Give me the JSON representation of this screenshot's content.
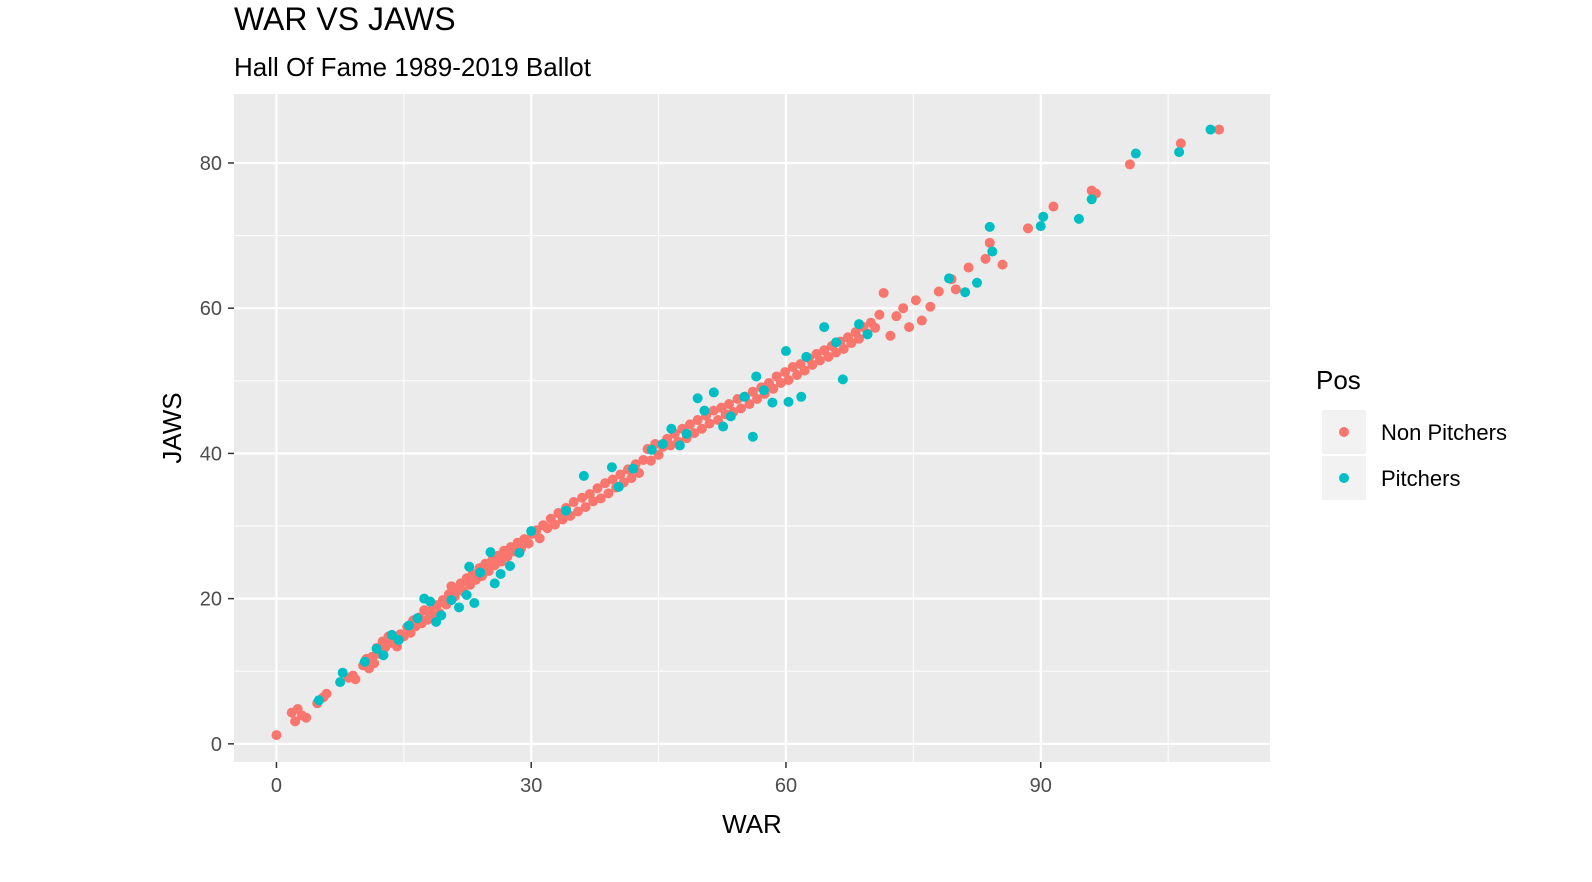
{
  "chart_data": {
    "type": "scatter",
    "title": "WAR VS JAWS",
    "subtitle": "Hall Of Fame 1989-2019 Ballot",
    "xlabel": "WAR",
    "ylabel": "JAWS",
    "xlim": [
      -5,
      117
    ],
    "ylim": [
      -2.5,
      89.5
    ],
    "x_ticks": [
      0,
      30,
      60,
      90
    ],
    "y_ticks": [
      0,
      20,
      40,
      60,
      80
    ],
    "x_tick_labels": [
      "0",
      "30",
      "60",
      "90"
    ],
    "y_tick_labels": [
      "0",
      "20",
      "40",
      "60",
      "80"
    ],
    "grid": true,
    "legend": {
      "title": "Pos",
      "position": "right"
    },
    "series": [
      {
        "name": "Non Pitchers",
        "color": "#F8766D",
        "points": [
          [
            0.0,
            1.2
          ],
          [
            1.8,
            4.3
          ],
          [
            2.5,
            4.8
          ],
          [
            2.2,
            3.1
          ],
          [
            3.0,
            3.9
          ],
          [
            3.5,
            3.6
          ],
          [
            4.8,
            5.6
          ],
          [
            5.5,
            6.4
          ],
          [
            5.9,
            6.9
          ],
          [
            8.5,
            9.1
          ],
          [
            9.0,
            9.4
          ],
          [
            9.3,
            8.9
          ],
          [
            10.2,
            10.8
          ],
          [
            10.6,
            11.7
          ],
          [
            10.9,
            10.4
          ],
          [
            11.3,
            12.0
          ],
          [
            11.5,
            11.1
          ],
          [
            11.8,
            13.2
          ],
          [
            12.1,
            12.4
          ],
          [
            12.5,
            14.1
          ],
          [
            12.8,
            13.3
          ],
          [
            13.2,
            14.8
          ],
          [
            13.5,
            13.9
          ],
          [
            13.9,
            14.6
          ],
          [
            14.2,
            13.4
          ],
          [
            14.6,
            15.1
          ],
          [
            15.0,
            14.8
          ],
          [
            15.4,
            16.1
          ],
          [
            15.8,
            15.3
          ],
          [
            16.1,
            17.0
          ],
          [
            16.4,
            16.2
          ],
          [
            16.8,
            17.4
          ],
          [
            17.1,
            16.6
          ],
          [
            17.4,
            18.4
          ],
          [
            17.8,
            17.1
          ],
          [
            18.1,
            18.3
          ],
          [
            18.5,
            17.6
          ],
          [
            18.9,
            19.1
          ],
          [
            19.2,
            18.0
          ],
          [
            19.6,
            19.8
          ],
          [
            20.0,
            19.2
          ],
          [
            20.3,
            20.6
          ],
          [
            20.6,
            21.7
          ],
          [
            21.0,
            20.3
          ],
          [
            21.3,
            21.2
          ],
          [
            21.7,
            22.1
          ],
          [
            22.0,
            21.0
          ],
          [
            22.4,
            22.8
          ],
          [
            22.8,
            21.9
          ],
          [
            23.1,
            23.4
          ],
          [
            23.5,
            22.6
          ],
          [
            23.9,
            24.2
          ],
          [
            24.2,
            23.1
          ],
          [
            24.6,
            24.8
          ],
          [
            25.0,
            23.8
          ],
          [
            25.4,
            25.3
          ],
          [
            25.7,
            24.6
          ],
          [
            26.1,
            25.9
          ],
          [
            26.5,
            25.1
          ],
          [
            26.8,
            26.6
          ],
          [
            27.2,
            25.8
          ],
          [
            27.6,
            27.1
          ],
          [
            28.0,
            26.5
          ],
          [
            28.4,
            27.7
          ],
          [
            28.8,
            26.9
          ],
          [
            29.2,
            28.2
          ],
          [
            29.7,
            27.6
          ],
          [
            30.1,
            28.9
          ],
          [
            30.6,
            29.4
          ],
          [
            31.0,
            28.3
          ],
          [
            31.4,
            30.1
          ],
          [
            31.9,
            29.7
          ],
          [
            32.3,
            31.0
          ],
          [
            32.8,
            30.2
          ],
          [
            33.2,
            31.8
          ],
          [
            33.7,
            30.9
          ],
          [
            34.1,
            32.5
          ],
          [
            34.6,
            31.4
          ],
          [
            35.0,
            33.3
          ],
          [
            35.5,
            32.0
          ],
          [
            36.0,
            33.9
          ],
          [
            36.4,
            32.6
          ],
          [
            36.9,
            34.4
          ],
          [
            37.3,
            33.4
          ],
          [
            37.8,
            35.2
          ],
          [
            38.2,
            33.8
          ],
          [
            38.7,
            35.9
          ],
          [
            39.1,
            34.5
          ],
          [
            39.6,
            36.4
          ],
          [
            40.0,
            35.3
          ],
          [
            40.5,
            37.1
          ],
          [
            40.9,
            36.0
          ],
          [
            41.4,
            37.8
          ],
          [
            41.8,
            36.6
          ],
          [
            42.3,
            38.5
          ],
          [
            42.7,
            37.3
          ],
          [
            43.2,
            39.1
          ],
          [
            43.7,
            40.6
          ],
          [
            44.1,
            39.0
          ],
          [
            44.6,
            41.3
          ],
          [
            45.0,
            39.8
          ],
          [
            45.5,
            40.9
          ],
          [
            46.0,
            42.0
          ],
          [
            46.4,
            41.1
          ],
          [
            46.9,
            42.7
          ],
          [
            47.3,
            41.6
          ],
          [
            47.8,
            43.4
          ],
          [
            48.3,
            42.1
          ],
          [
            48.7,
            44.0
          ],
          [
            49.2,
            42.8
          ],
          [
            49.6,
            44.6
          ],
          [
            50.1,
            43.4
          ],
          [
            50.6,
            45.2
          ],
          [
            51.0,
            44.1
          ],
          [
            51.5,
            45.9
          ],
          [
            52.0,
            44.6
          ],
          [
            52.4,
            46.3
          ],
          [
            52.9,
            45.4
          ],
          [
            53.3,
            46.8
          ],
          [
            53.8,
            45.7
          ],
          [
            54.3,
            47.5
          ],
          [
            54.7,
            46.2
          ],
          [
            55.2,
            47.8
          ],
          [
            55.7,
            46.8
          ],
          [
            56.1,
            48.5
          ],
          [
            56.6,
            47.5
          ],
          [
            57.1,
            49.1
          ],
          [
            57.5,
            48.2
          ],
          [
            58.0,
            49.7
          ],
          [
            58.5,
            48.9
          ],
          [
            58.9,
            50.6
          ],
          [
            59.4,
            49.7
          ],
          [
            59.9,
            51.2
          ],
          [
            60.3,
            50.1
          ],
          [
            60.8,
            51.9
          ],
          [
            61.3,
            50.8
          ],
          [
            61.7,
            52.3
          ],
          [
            62.2,
            51.4
          ],
          [
            62.7,
            53.1
          ],
          [
            63.1,
            52.2
          ],
          [
            63.6,
            53.7
          ],
          [
            64.0,
            52.8
          ],
          [
            64.5,
            54.2
          ],
          [
            65.0,
            53.3
          ],
          [
            65.4,
            54.8
          ],
          [
            65.9,
            53.9
          ],
          [
            66.4,
            55.4
          ],
          [
            66.8,
            54.4
          ],
          [
            67.3,
            56.0
          ],
          [
            67.7,
            55.2
          ],
          [
            68.2,
            56.7
          ],
          [
            68.6,
            55.8
          ],
          [
            69.1,
            57.4
          ],
          [
            69.6,
            56.5
          ],
          [
            70.0,
            58.0
          ],
          [
            70.5,
            57.3
          ],
          [
            71.0,
            59.1
          ],
          [
            71.5,
            62.1
          ],
          [
            72.3,
            56.2
          ],
          [
            73.0,
            58.9
          ],
          [
            73.8,
            60.0
          ],
          [
            74.5,
            57.4
          ],
          [
            75.3,
            61.1
          ],
          [
            76.0,
            58.3
          ],
          [
            77.0,
            60.2
          ],
          [
            78.0,
            62.3
          ],
          [
            79.5,
            64.0
          ],
          [
            80.0,
            62.6
          ],
          [
            81.5,
            65.6
          ],
          [
            83.5,
            66.8
          ],
          [
            84.0,
            69.0
          ],
          [
            85.5,
            66.0
          ],
          [
            88.5,
            71.0
          ],
          [
            91.5,
            74.0
          ],
          [
            96.0,
            76.2
          ],
          [
            96.5,
            75.8
          ],
          [
            100.5,
            79.8
          ],
          [
            106.5,
            82.7
          ],
          [
            111.0,
            84.6
          ]
        ]
      },
      {
        "name": "Pitchers",
        "color": "#00BFC4",
        "points": [
          [
            5.0,
            6.0
          ],
          [
            7.5,
            8.5
          ],
          [
            7.8,
            9.8
          ],
          [
            10.4,
            11.3
          ],
          [
            11.8,
            13.1
          ],
          [
            12.6,
            12.2
          ],
          [
            13.6,
            15.0
          ],
          [
            14.4,
            14.3
          ],
          [
            15.6,
            16.3
          ],
          [
            16.6,
            17.3
          ],
          [
            17.4,
            20.0
          ],
          [
            18.1,
            19.6
          ],
          [
            18.8,
            16.8
          ],
          [
            19.4,
            17.7
          ],
          [
            20.6,
            19.8
          ],
          [
            21.5,
            18.8
          ],
          [
            22.4,
            20.5
          ],
          [
            22.7,
            24.4
          ],
          [
            23.3,
            19.4
          ],
          [
            24.0,
            23.6
          ],
          [
            25.2,
            26.4
          ],
          [
            25.7,
            22.1
          ],
          [
            26.4,
            23.4
          ],
          [
            27.5,
            24.5
          ],
          [
            28.6,
            26.3
          ],
          [
            30.0,
            29.3
          ],
          [
            34.1,
            32.1
          ],
          [
            36.2,
            36.9
          ],
          [
            39.5,
            38.1
          ],
          [
            40.3,
            35.4
          ],
          [
            42.0,
            37.9
          ],
          [
            44.2,
            40.5
          ],
          [
            45.5,
            41.3
          ],
          [
            46.5,
            43.4
          ],
          [
            47.5,
            41.1
          ],
          [
            48.3,
            42.7
          ],
          [
            49.6,
            47.6
          ],
          [
            50.4,
            45.9
          ],
          [
            51.5,
            48.4
          ],
          [
            52.6,
            43.7
          ],
          [
            53.5,
            45.1
          ],
          [
            55.1,
            47.8
          ],
          [
            56.1,
            42.3
          ],
          [
            56.5,
            50.6
          ],
          [
            57.4,
            48.7
          ],
          [
            58.4,
            47.0
          ],
          [
            60.0,
            54.1
          ],
          [
            60.3,
            47.1
          ],
          [
            61.8,
            47.8
          ],
          [
            62.4,
            53.3
          ],
          [
            64.5,
            57.4
          ],
          [
            65.9,
            55.3
          ],
          [
            66.7,
            50.2
          ],
          [
            68.6,
            57.8
          ],
          [
            69.6,
            56.4
          ],
          [
            79.2,
            64.1
          ],
          [
            81.1,
            62.2
          ],
          [
            82.5,
            63.5
          ],
          [
            84.0,
            71.2
          ],
          [
            84.3,
            67.8
          ],
          [
            90.0,
            71.3
          ],
          [
            90.3,
            72.6
          ],
          [
            94.5,
            72.3
          ],
          [
            96.0,
            75.0
          ],
          [
            101.2,
            81.3
          ],
          [
            106.3,
            81.5
          ],
          [
            110.0,
            84.6
          ]
        ]
      }
    ]
  }
}
